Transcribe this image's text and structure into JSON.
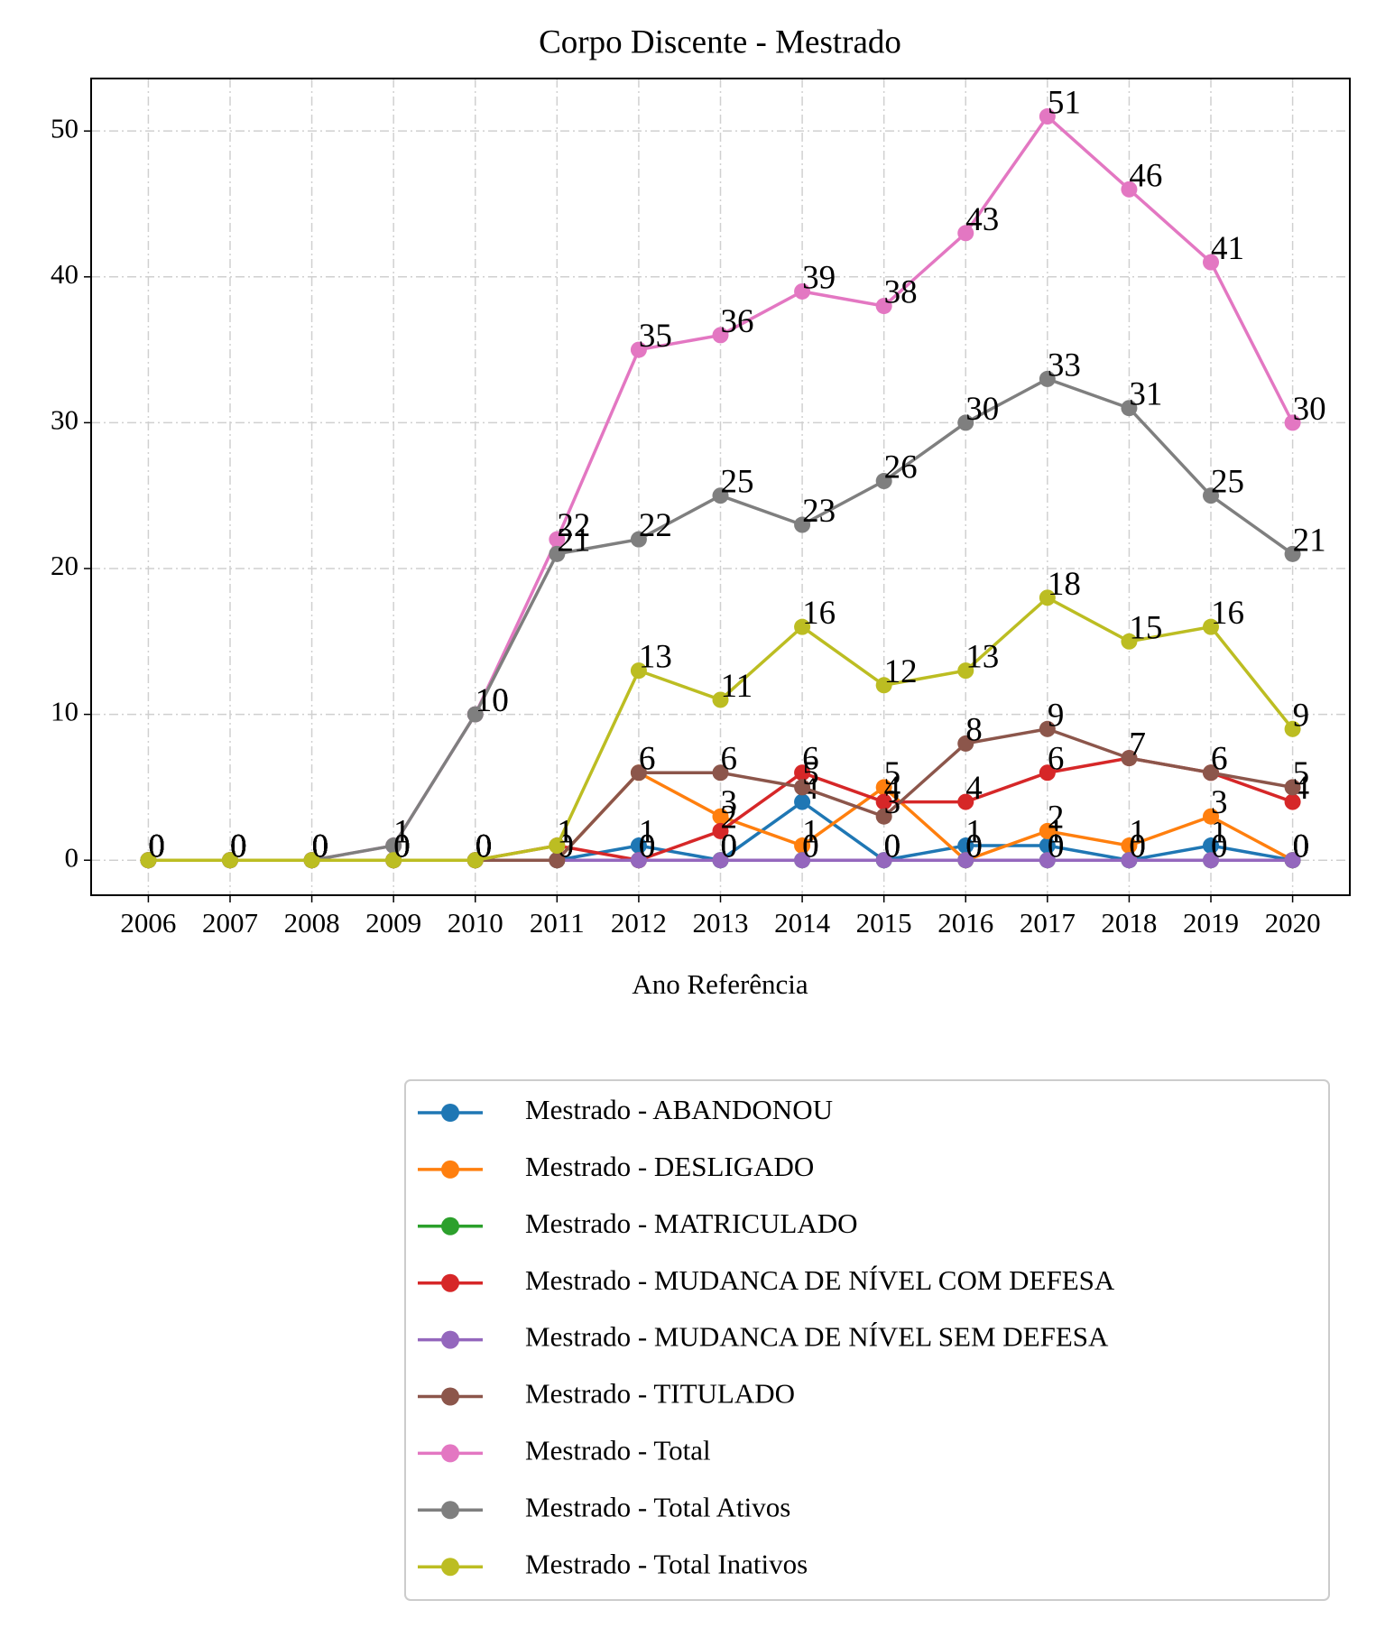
{
  "chart_data": {
    "type": "line",
    "title": "Corpo Discente - Mestrado",
    "xlabel": "Ano Referência",
    "x": [
      2006,
      2007,
      2008,
      2009,
      2010,
      2011,
      2012,
      2013,
      2014,
      2015,
      2016,
      2017,
      2018,
      2019,
      2020
    ],
    "xlim": [
      2005.3,
      2020.7
    ],
    "xticks": [
      2006,
      2007,
      2008,
      2009,
      2010,
      2011,
      2012,
      2013,
      2014,
      2015,
      2016,
      2017,
      2018,
      2019,
      2020
    ],
    "ylim": [
      -2.4,
      53.6
    ],
    "yticks": [
      0,
      10,
      20,
      30,
      40,
      50
    ],
    "grid": true,
    "legend": "below",
    "series": [
      {
        "name": "Mestrado - ABANDONOU",
        "color": "#1f77b4",
        "values": [
          0,
          0,
          0,
          0,
          0,
          0,
          1,
          0,
          4,
          0,
          1,
          1,
          0,
          1,
          0
        ]
      },
      {
        "name": "Mestrado - DESLIGADO",
        "color": "#ff7f0e",
        "values": [
          0,
          0,
          0,
          0,
          0,
          0,
          6,
          3,
          1,
          5,
          0,
          2,
          1,
          3,
          0
        ]
      },
      {
        "name": "Mestrado - MATRICULADO",
        "color": "#2ca02c",
        "values": [
          0,
          0,
          0,
          0,
          0,
          0,
          0,
          0,
          0,
          0,
          0,
          0,
          0,
          0,
          0
        ]
      },
      {
        "name": "Mestrado - MUDANCA DE NÍVEL COM DEFESA",
        "color": "#d62728",
        "values": [
          0,
          0,
          0,
          0,
          0,
          1,
          0,
          2,
          6,
          4,
          4,
          6,
          7,
          6,
          4
        ]
      },
      {
        "name": "Mestrado - MUDANCA DE NÍVEL SEM DEFESA",
        "color": "#9467bd",
        "values": [
          0,
          0,
          0,
          0,
          0,
          0,
          0,
          0,
          0,
          0,
          0,
          0,
          0,
          0,
          0
        ]
      },
      {
        "name": "Mestrado - TITULADO",
        "color": "#8c564b",
        "values": [
          0,
          0,
          0,
          0,
          0,
          0,
          6,
          6,
          5,
          3,
          8,
          9,
          7,
          6,
          5
        ]
      },
      {
        "name": "Mestrado - Total",
        "color": "#e377c2",
        "values": [
          0,
          0,
          0,
          1,
          10,
          22,
          35,
          36,
          39,
          38,
          43,
          51,
          46,
          41,
          30
        ]
      },
      {
        "name": "Mestrado - Total Ativos",
        "color": "#7f7f7f",
        "values": [
          0,
          0,
          0,
          1,
          10,
          21,
          22,
          25,
          23,
          26,
          30,
          33,
          31,
          25,
          21
        ]
      },
      {
        "name": "Mestrado - Total Inativos",
        "color": "#bcbd22",
        "values": [
          0,
          0,
          0,
          0,
          0,
          1,
          13,
          11,
          16,
          12,
          13,
          18,
          15,
          16,
          9
        ]
      }
    ]
  }
}
